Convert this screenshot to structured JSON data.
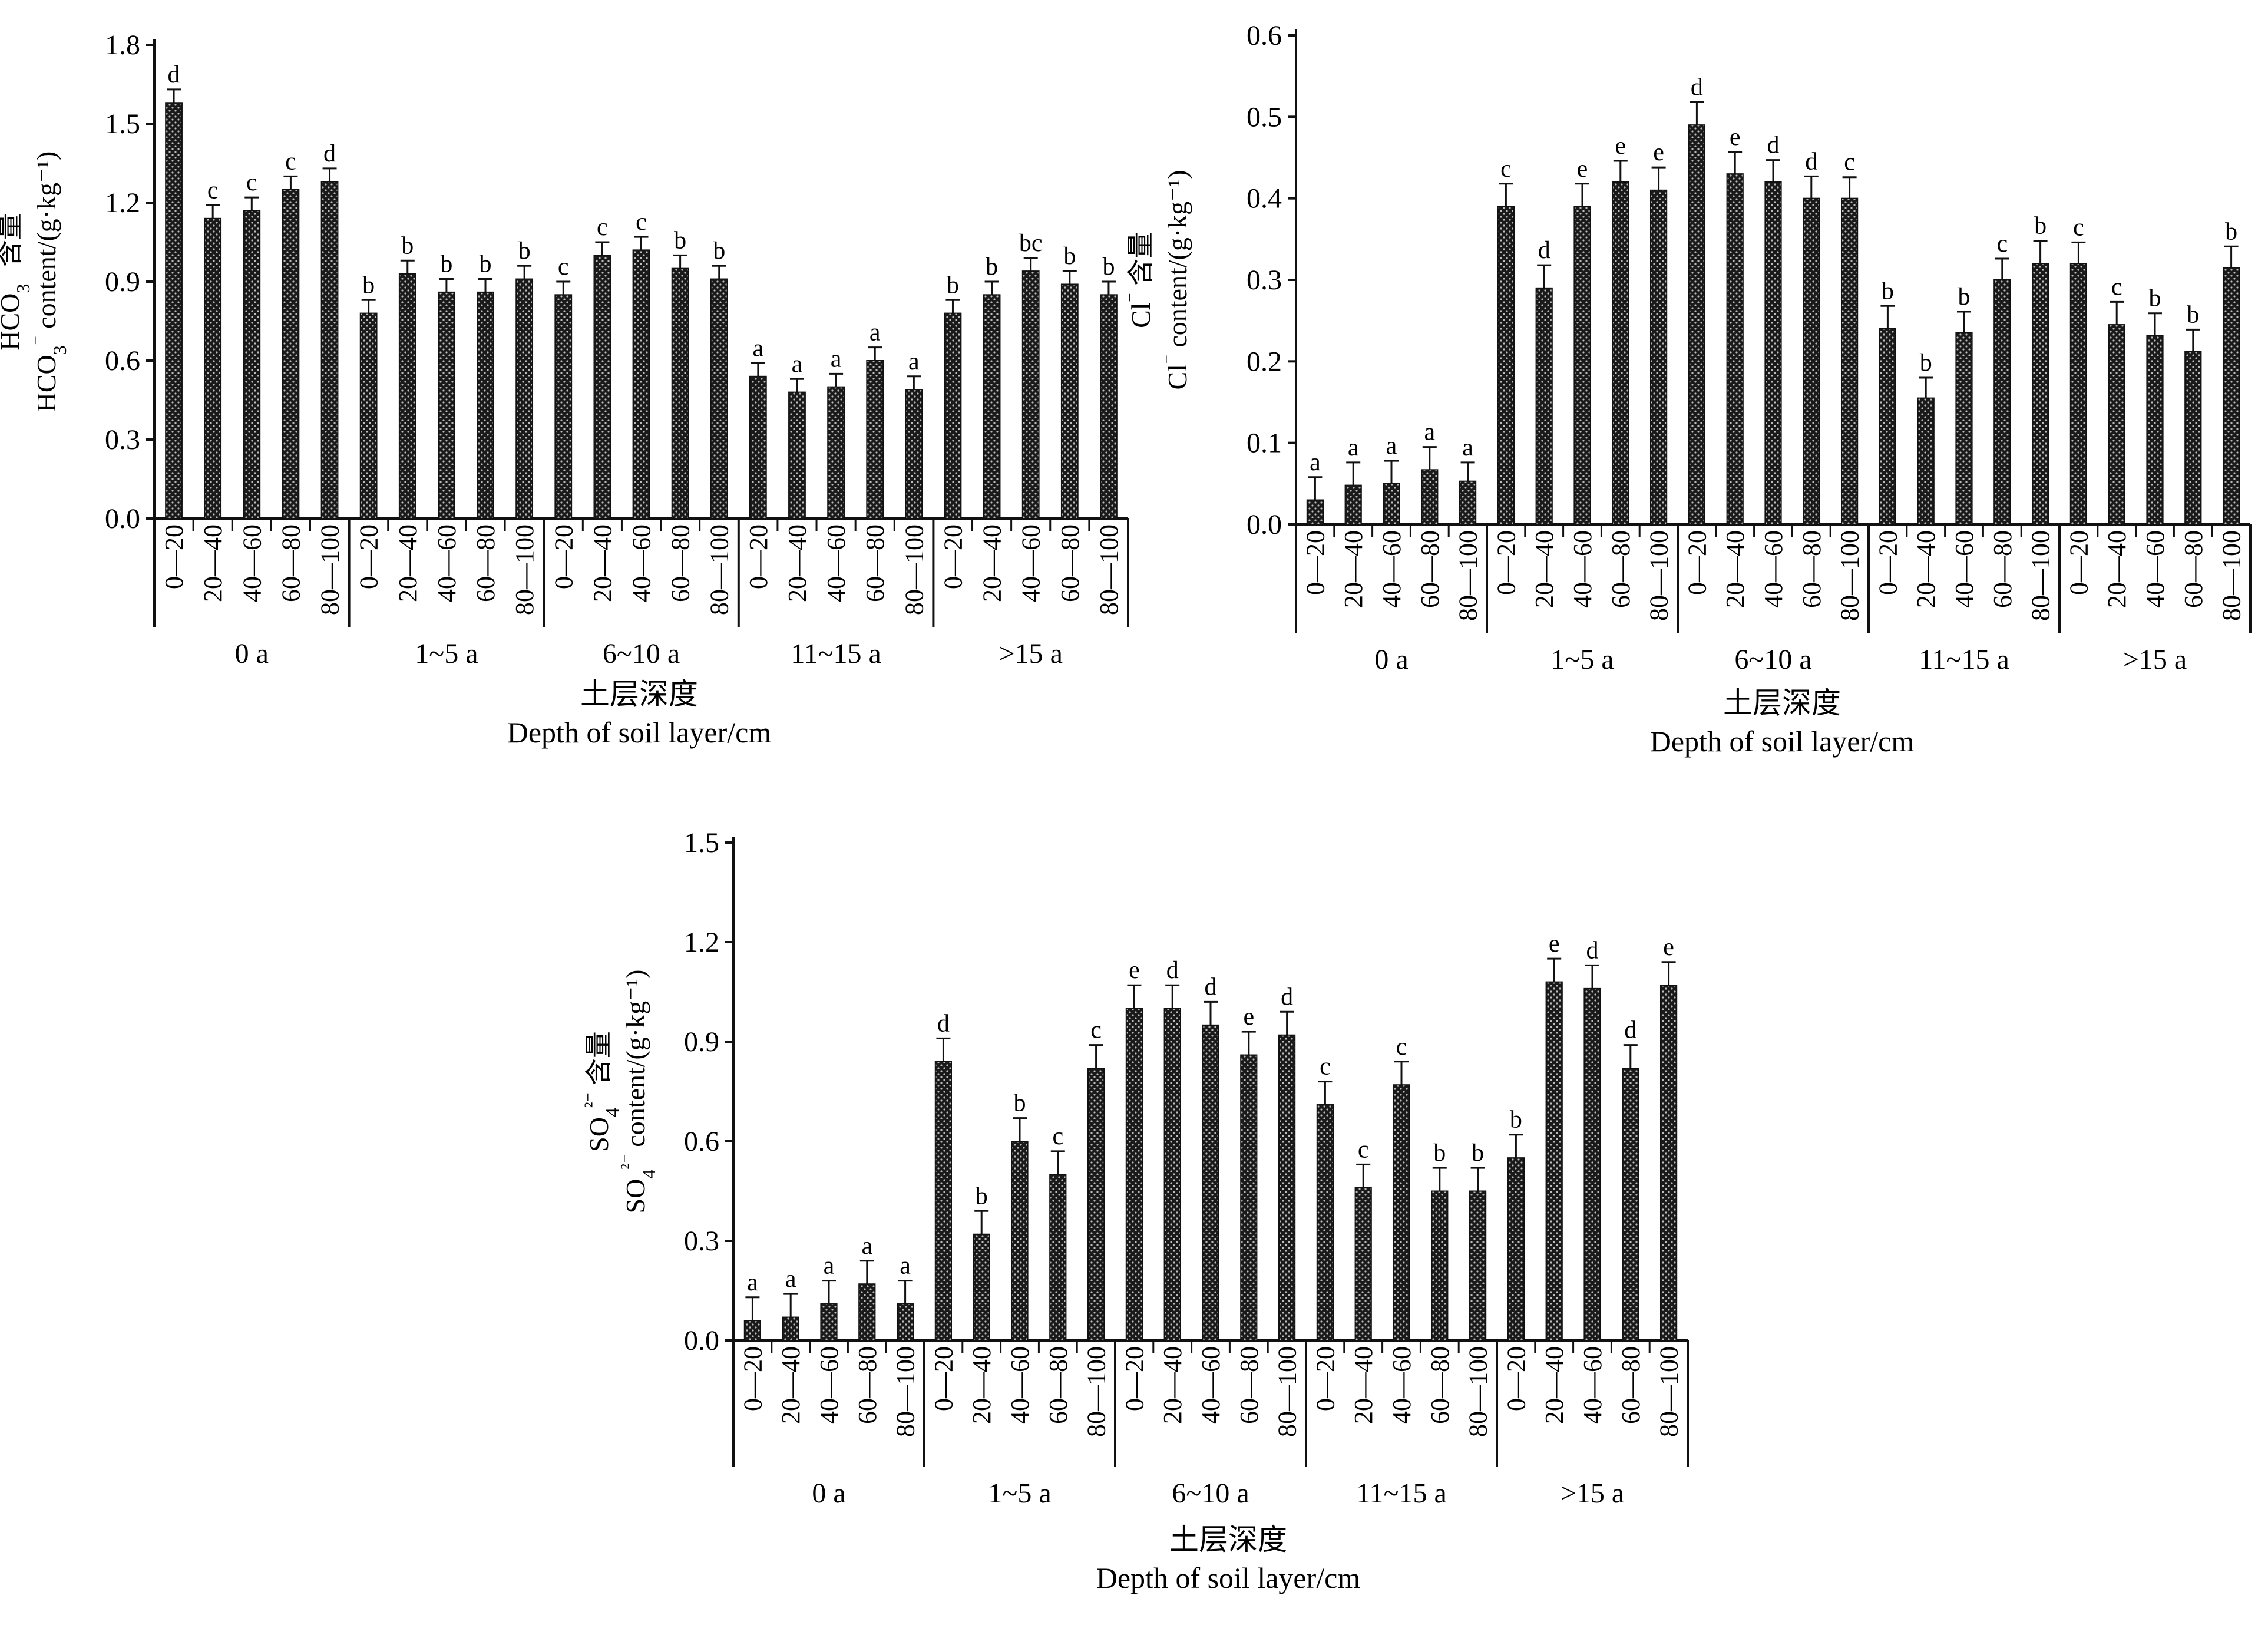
{
  "chart_data": [
    {
      "type": "bar",
      "ylabel_cn": "HCO3⁻ 含量",
      "ylabel_en": "HCO3⁻ content/(g·kg⁻¹)",
      "xlabel_cn": "土层深度",
      "xlabel_en": "Depth of soil layer/cm",
      "ylim": [
        0,
        1.8
      ],
      "yticks": [
        "0.0",
        "0.3",
        "0.6",
        "0.9",
        "1.2",
        "1.5",
        "1.8"
      ],
      "groups": [
        "0 a",
        "1~5 a",
        "6~10 a",
        "11~15 a",
        ">15 a"
      ],
      "depths": [
        "0—20",
        "20—40",
        "40—60",
        "60—80",
        "80—100"
      ],
      "values": [
        1.58,
        1.14,
        1.17,
        1.25,
        1.28,
        0.78,
        0.93,
        0.86,
        0.86,
        0.91,
        0.85,
        1.0,
        1.02,
        0.95,
        0.91,
        0.54,
        0.48,
        0.5,
        0.6,
        0.49,
        0.78,
        0.85,
        0.94,
        0.89,
        0.85
      ],
      "errors": [
        0.05,
        0.05,
        0.05,
        0.05,
        0.05,
        0.05,
        0.05,
        0.05,
        0.05,
        0.05,
        0.05,
        0.05,
        0.05,
        0.05,
        0.05,
        0.05,
        0.05,
        0.05,
        0.05,
        0.05,
        0.05,
        0.05,
        0.05,
        0.05,
        0.05
      ],
      "labels": [
        "d",
        "c",
        "c",
        "c",
        "d",
        "b",
        "b",
        "b",
        "b",
        "b",
        "c",
        "c",
        "c",
        "b",
        "b",
        "a",
        "a",
        "a",
        "a",
        "a",
        "b",
        "b",
        "bc",
        "b",
        "b"
      ]
    },
    {
      "type": "bar",
      "ylabel_cn": "Cl⁻ 含量",
      "ylabel_en": "Cl⁻ content/(g·kg⁻¹)",
      "xlabel_cn": "土层深度",
      "xlabel_en": "Depth of soil layer/cm",
      "ylim": [
        0,
        0.6
      ],
      "yticks": [
        "0.0",
        "0.1",
        "0.2",
        "0.3",
        "0.4",
        "0.5",
        "0.6"
      ],
      "groups": [
        "0 a",
        "1~5 a",
        "6~10 a",
        "11~15 a",
        ">15 a"
      ],
      "depths": [
        "0—20",
        "20—40",
        "40—60",
        "60—80",
        "80—100"
      ],
      "values": [
        0.03,
        0.048,
        0.05,
        0.067,
        0.053,
        0.39,
        0.29,
        0.39,
        0.42,
        0.41,
        0.49,
        0.43,
        0.42,
        0.4,
        0.4,
        0.24,
        0.155,
        0.235,
        0.3,
        0.32,
        0.32,
        0.245,
        0.232,
        0.212,
        0.315
      ],
      "errors": [
        0.028,
        0.028,
        0.028,
        0.028,
        0.023,
        0.028,
        0.028,
        0.028,
        0.026,
        0.028,
        0.028,
        0.027,
        0.027,
        0.027,
        0.026,
        0.028,
        0.025,
        0.026,
        0.026,
        0.028,
        0.026,
        0.028,
        0.027,
        0.027,
        0.026
      ],
      "labels": [
        "a",
        "a",
        "a",
        "a",
        "a",
        "c",
        "d",
        "e",
        "e",
        "e",
        "d",
        "e",
        "d",
        "d",
        "c",
        "b",
        "b",
        "b",
        "c",
        "b",
        "c",
        "c",
        "b",
        "b",
        "b"
      ]
    },
    {
      "type": "bar",
      "ylabel_cn": "SO4²⁻ 含量",
      "ylabel_en": "SO4²⁻ content/(g·kg⁻¹)",
      "xlabel_cn": "土层深度",
      "xlabel_en": "Depth of soil layer/cm",
      "ylim": [
        0,
        1.5
      ],
      "yticks": [
        "0.0",
        "0.3",
        "0.6",
        "0.9",
        "1.2",
        "1.5"
      ],
      "groups": [
        "0 a",
        "1~5 a",
        "6~10 a",
        "11~15 a",
        ">15 a"
      ],
      "depths": [
        "0—20",
        "20—40",
        "40—60",
        "60—80",
        "80—100"
      ],
      "values": [
        0.06,
        0.07,
        0.11,
        0.17,
        0.11,
        0.84,
        0.32,
        0.6,
        0.5,
        0.82,
        1.0,
        1.0,
        0.95,
        0.86,
        0.92,
        0.71,
        0.46,
        0.77,
        0.45,
        0.45,
        0.55,
        1.08,
        1.06,
        0.82,
        1.07
      ],
      "errors": [
        0.07,
        0.07,
        0.07,
        0.07,
        0.07,
        0.07,
        0.07,
        0.07,
        0.07,
        0.07,
        0.07,
        0.07,
        0.07,
        0.07,
        0.07,
        0.07,
        0.07,
        0.07,
        0.07,
        0.07,
        0.07,
        0.07,
        0.07,
        0.07,
        0.07
      ],
      "labels": [
        "a",
        "a",
        "a",
        "a",
        "a",
        "d",
        "b",
        "b",
        "c",
        "c",
        "e",
        "d",
        "d",
        "e",
        "d",
        "c",
        "c",
        "c",
        "b",
        "b",
        "b",
        "e",
        "d",
        "d",
        "e"
      ]
    }
  ]
}
